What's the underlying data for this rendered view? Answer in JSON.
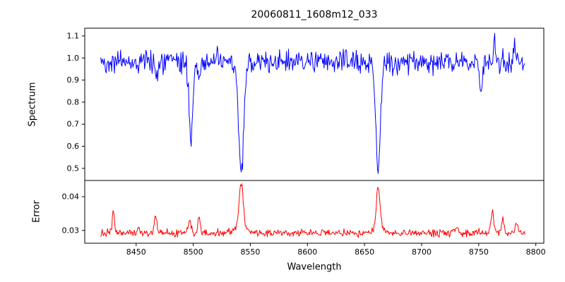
{
  "title": "20060811_1608m12_033",
  "x_axis": {
    "label": "Wavelength",
    "range": [
      8405,
      8807
    ],
    "data_range": [
      8419,
      8791
    ],
    "sample_step": 0.6,
    "ticks": [
      8450,
      8500,
      8550,
      8600,
      8650,
      8700,
      8750,
      8800
    ],
    "tick_labels": [
      "8450",
      "8500",
      "8550",
      "8600",
      "8650",
      "8700",
      "8750",
      "8800"
    ]
  },
  "noise_seed": 42,
  "chart_data": [
    {
      "type": "line",
      "name": "spectrum",
      "panel": "top",
      "color": "#0000ff",
      "ylabel": "Spectrum",
      "ylim": [
        0.445,
        1.135
      ],
      "yticks": [
        0.5,
        0.6,
        0.7,
        0.8,
        0.9,
        1.0,
        1.1
      ],
      "ytick_labels": [
        "0.5",
        "0.6",
        "0.7",
        "0.8",
        "0.9",
        "1.0",
        "1.1"
      ],
      "baseline": 0.982,
      "noise_amp": 0.05,
      "features": [
        {
          "center": 8468,
          "amp": -0.05,
          "sigma": 1.2
        },
        {
          "center": 8498,
          "amp": -0.36,
          "sigma": 1.6
        },
        {
          "center": 8505,
          "amp": -0.07,
          "sigma": 1.2
        },
        {
          "center": 8542,
          "amp": -0.52,
          "sigma": 2.2
        },
        {
          "center": 8662,
          "amp": -0.49,
          "sigma": 2.0
        },
        {
          "center": 8752,
          "amp": -0.14,
          "sigma": 1.3
        },
        {
          "center": 8764,
          "amp": 0.08,
          "sigma": 0.9
        },
        {
          "center": 8781,
          "amp": 0.09,
          "sigma": 0.9
        }
      ]
    },
    {
      "type": "line",
      "name": "error",
      "panel": "bottom",
      "color": "#ff0000",
      "ylabel": "Error",
      "ylim": [
        0.0262,
        0.0448
      ],
      "yticks": [
        0.03,
        0.04
      ],
      "ytick_labels": [
        "0.03",
        "0.04"
      ],
      "baseline": 0.0292,
      "noise_amp": 0.0011,
      "features": [
        {
          "center": 8430,
          "amp": 0.0068,
          "sigma": 1.0
        },
        {
          "center": 8452,
          "amp": 0.0028,
          "sigma": 0.9
        },
        {
          "center": 8467,
          "amp": 0.005,
          "sigma": 1.0
        },
        {
          "center": 8497,
          "amp": 0.0038,
          "sigma": 1.4
        },
        {
          "center": 8505,
          "amp": 0.0048,
          "sigma": 1.0
        },
        {
          "center": 8542,
          "amp": 0.0135,
          "sigma": 1.8
        },
        {
          "center": 8542,
          "amp": 0.0015,
          "sigma": 6.0
        },
        {
          "center": 8662,
          "amp": 0.0125,
          "sigma": 1.6
        },
        {
          "center": 8662,
          "amp": 0.0012,
          "sigma": 5.0
        },
        {
          "center": 8730,
          "amp": 0.0015,
          "sigma": 2.0
        },
        {
          "center": 8762,
          "amp": 0.0062,
          "sigma": 1.2
        },
        {
          "center": 8771,
          "amp": 0.0045,
          "sigma": 1.0
        },
        {
          "center": 8783,
          "amp": 0.003,
          "sigma": 1.0
        }
      ]
    }
  ]
}
